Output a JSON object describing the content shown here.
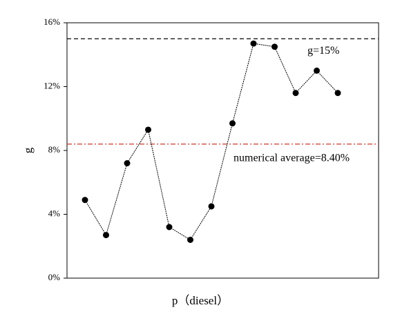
{
  "chart_data": {
    "type": "line",
    "xlabel": "p（diesel）",
    "ylabel": "g",
    "categories": [
      null,
      null,
      null,
      null,
      null,
      null,
      null,
      null,
      null,
      null,
      null,
      null,
      null
    ],
    "series": [
      {
        "color": "#000000",
        "values": [
          4.9,
          2.7,
          7.2,
          9.3,
          3.2,
          2.4,
          4.5,
          9.7,
          14.7,
          14.5,
          11.6,
          13.0,
          11.6
        ]
      }
    ],
    "ylim": [
      0,
      16
    ],
    "yticks": [
      {
        "value": 0,
        "label": "0%"
      },
      {
        "value": 4,
        "label": "4%"
      },
      {
        "value": 8,
        "label": "8%"
      },
      {
        "value": 12,
        "label": "12%"
      },
      {
        "value": 16,
        "label": "16%"
      }
    ],
    "reference_lines": [
      {
        "value": 15,
        "label": "g=15%",
        "color": "#000000",
        "style": "dashed"
      },
      {
        "value": 8.4,
        "label": "numerical average=8.40%",
        "color": "#c8372d",
        "style": "dashdot"
      }
    ],
    "grid": false
  }
}
